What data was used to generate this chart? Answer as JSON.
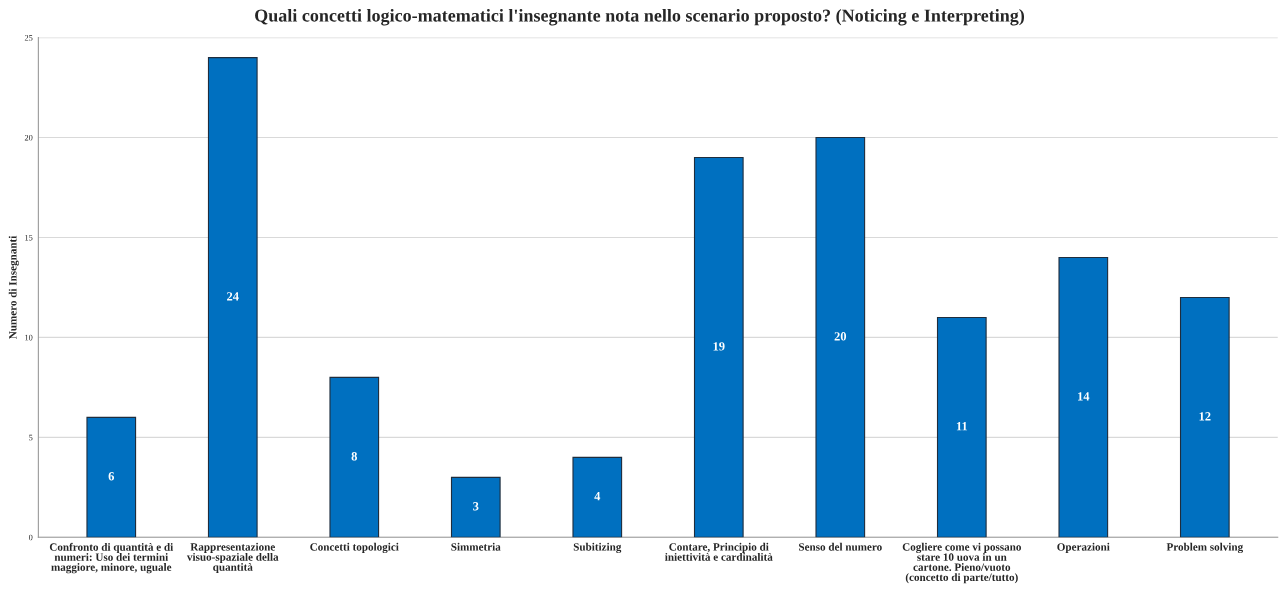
{
  "chart_data": {
    "type": "bar",
    "title": "Quali concetti logico-matematici l'insegnante nota nello scenario proposto? (Noticing e Interpreting)",
    "ylabel": "Numero di Insegnanti",
    "categories": [
      "Confronto di quantità e di numeri: Uso dei termini maggiore, minore, uguale",
      "Rappresentazione visuo-spaziale della quantità",
      "Concetti topologici",
      "Simmetria",
      "Subitizing",
      "Contare, Principio di iniettività e cardinalità",
      "Senso del numero",
      "Cogliere come vi possano stare 10 uova in un cartone. Pieno/vuoto (concetto di parte/tutto)",
      "Operazioni",
      "Problem solving"
    ],
    "values": [
      6,
      24,
      8,
      3,
      4,
      19,
      20,
      11,
      14,
      12
    ],
    "color": "#0070c0",
    "ylim": [
      0,
      25
    ],
    "yticks": [
      0,
      5,
      10,
      15,
      20,
      25
    ],
    "grid": "y",
    "data_labels": true
  }
}
